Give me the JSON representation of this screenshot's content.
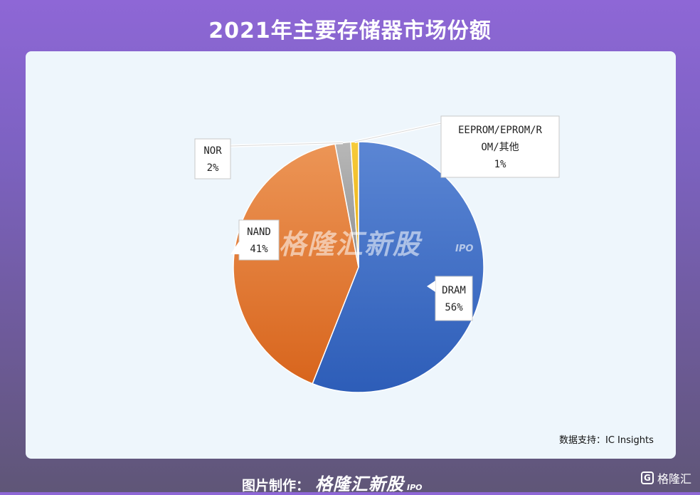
{
  "header": {
    "title": "2021年主要存储器市场份额"
  },
  "chart_data": {
    "type": "pie",
    "title": "2021年主要存储器市场份额",
    "slices": [
      {
        "label": "DRAM",
        "value": 56,
        "value_label": "56%",
        "color": "#3f6fc7"
      },
      {
        "label": "NAND",
        "value": 41,
        "value_label": "41%",
        "color": "#e5762a"
      },
      {
        "label": "NOR",
        "value": 2,
        "value_label": "2%",
        "color": "#a6a6a6"
      },
      {
        "label_lines": [
          "EEPROM/EPROM/R",
          "OM/其他"
        ],
        "value": 1,
        "value_label": "1%",
        "color": "#f2bb18"
      }
    ],
    "source": "数据支持：IC Insights"
  },
  "watermark": {
    "text": "格隆汇新股",
    "suffix": "IPO"
  },
  "footer": {
    "credit": "图片制作：",
    "brand": "格隆汇新股",
    "brand_suffix": "IPO"
  },
  "corner_logo": {
    "icon": "G",
    "text": "格隆汇"
  }
}
